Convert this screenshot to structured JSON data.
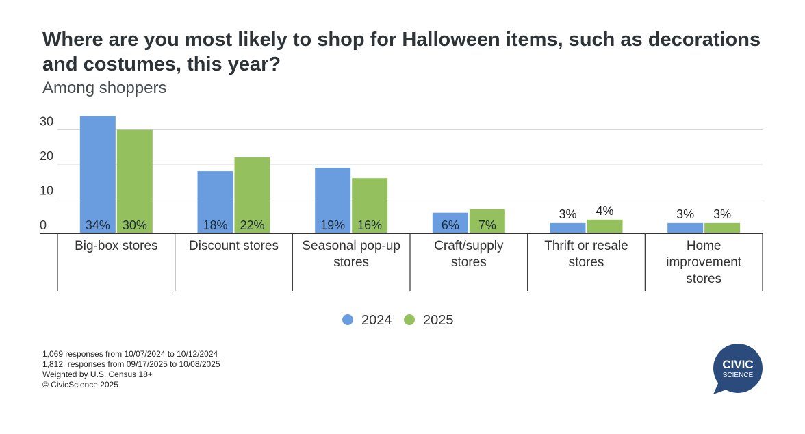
{
  "header": {
    "title": "Where are you most likely to shop for Halloween items, such as decorations and costumes, this year?",
    "subtitle": "Among shoppers"
  },
  "chart_data": {
    "type": "bar",
    "title": "Where are you most likely to shop for Halloween items, such as decorations and costumes, this year?",
    "subtitle": "Among shoppers",
    "categories": [
      [
        "Big-box stores"
      ],
      [
        "Discount stores"
      ],
      [
        "Seasonal pop-up",
        "stores"
      ],
      [
        "Craft/supply",
        "stores"
      ],
      [
        "Thrift or resale",
        "stores"
      ],
      [
        "Home",
        "improvement",
        "stores"
      ]
    ],
    "series": [
      {
        "name": "2024",
        "color": "#6a9de0",
        "values": [
          34,
          18,
          19,
          6,
          3,
          3
        ],
        "labels": [
          "34%",
          "18%",
          "19%",
          "6%",
          "3%",
          "3%"
        ]
      },
      {
        "name": "2025",
        "color": "#94c15e",
        "values": [
          30,
          22,
          16,
          7,
          4,
          3
        ],
        "labels": [
          "30%",
          "22%",
          "16%",
          "7%",
          "4%",
          "3%"
        ]
      }
    ],
    "yticks": [
      0,
      10,
      20,
      30
    ],
    "ylim": [
      0,
      34
    ],
    "grid": true,
    "legend_position": "bottom-center"
  },
  "footnotes": [
    "1,069 responses from 10/07/2024 to 10/12/2024",
    "1,812  responses from 09/17/2025 to 10/08/2025",
    "Weighted by U.S. Census 18+",
    "© CivicScience 2025"
  ],
  "logo": {
    "line1": "CIVIC",
    "line2": "SCIENCE",
    "color": "#2a4b7c"
  }
}
